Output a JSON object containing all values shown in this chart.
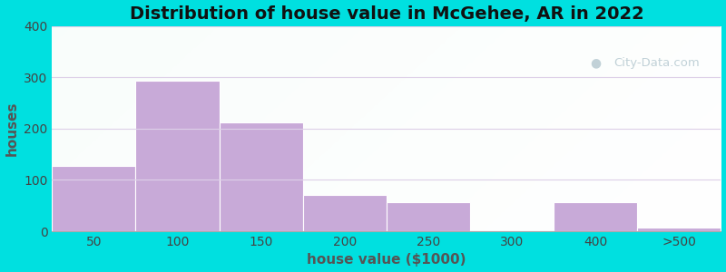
{
  "title": "Distribution of house value in McGehee, AR in 2022",
  "xlabel": "house value ($1000)",
  "ylabel": "houses",
  "bar_labels": [
    "50",
    "100",
    "150",
    "200",
    "250",
    "300",
    "400",
    ">500"
  ],
  "bar_values": [
    127,
    293,
    212,
    70,
    57,
    0,
    57,
    8
  ],
  "bar_color": "#c8aad8",
  "bar_edge_color": "#c8aad8",
  "ylim": [
    0,
    400
  ],
  "yticks": [
    0,
    100,
    200,
    300,
    400
  ],
  "background_outer": "#00e0e0",
  "grid_color": "#ddd0e8",
  "title_fontsize": 14,
  "axis_label_fontsize": 11,
  "tick_fontsize": 10,
  "watermark_text": "City-Data.com",
  "watermark_color": "#a8bfc8",
  "watermark_alpha": 0.7
}
